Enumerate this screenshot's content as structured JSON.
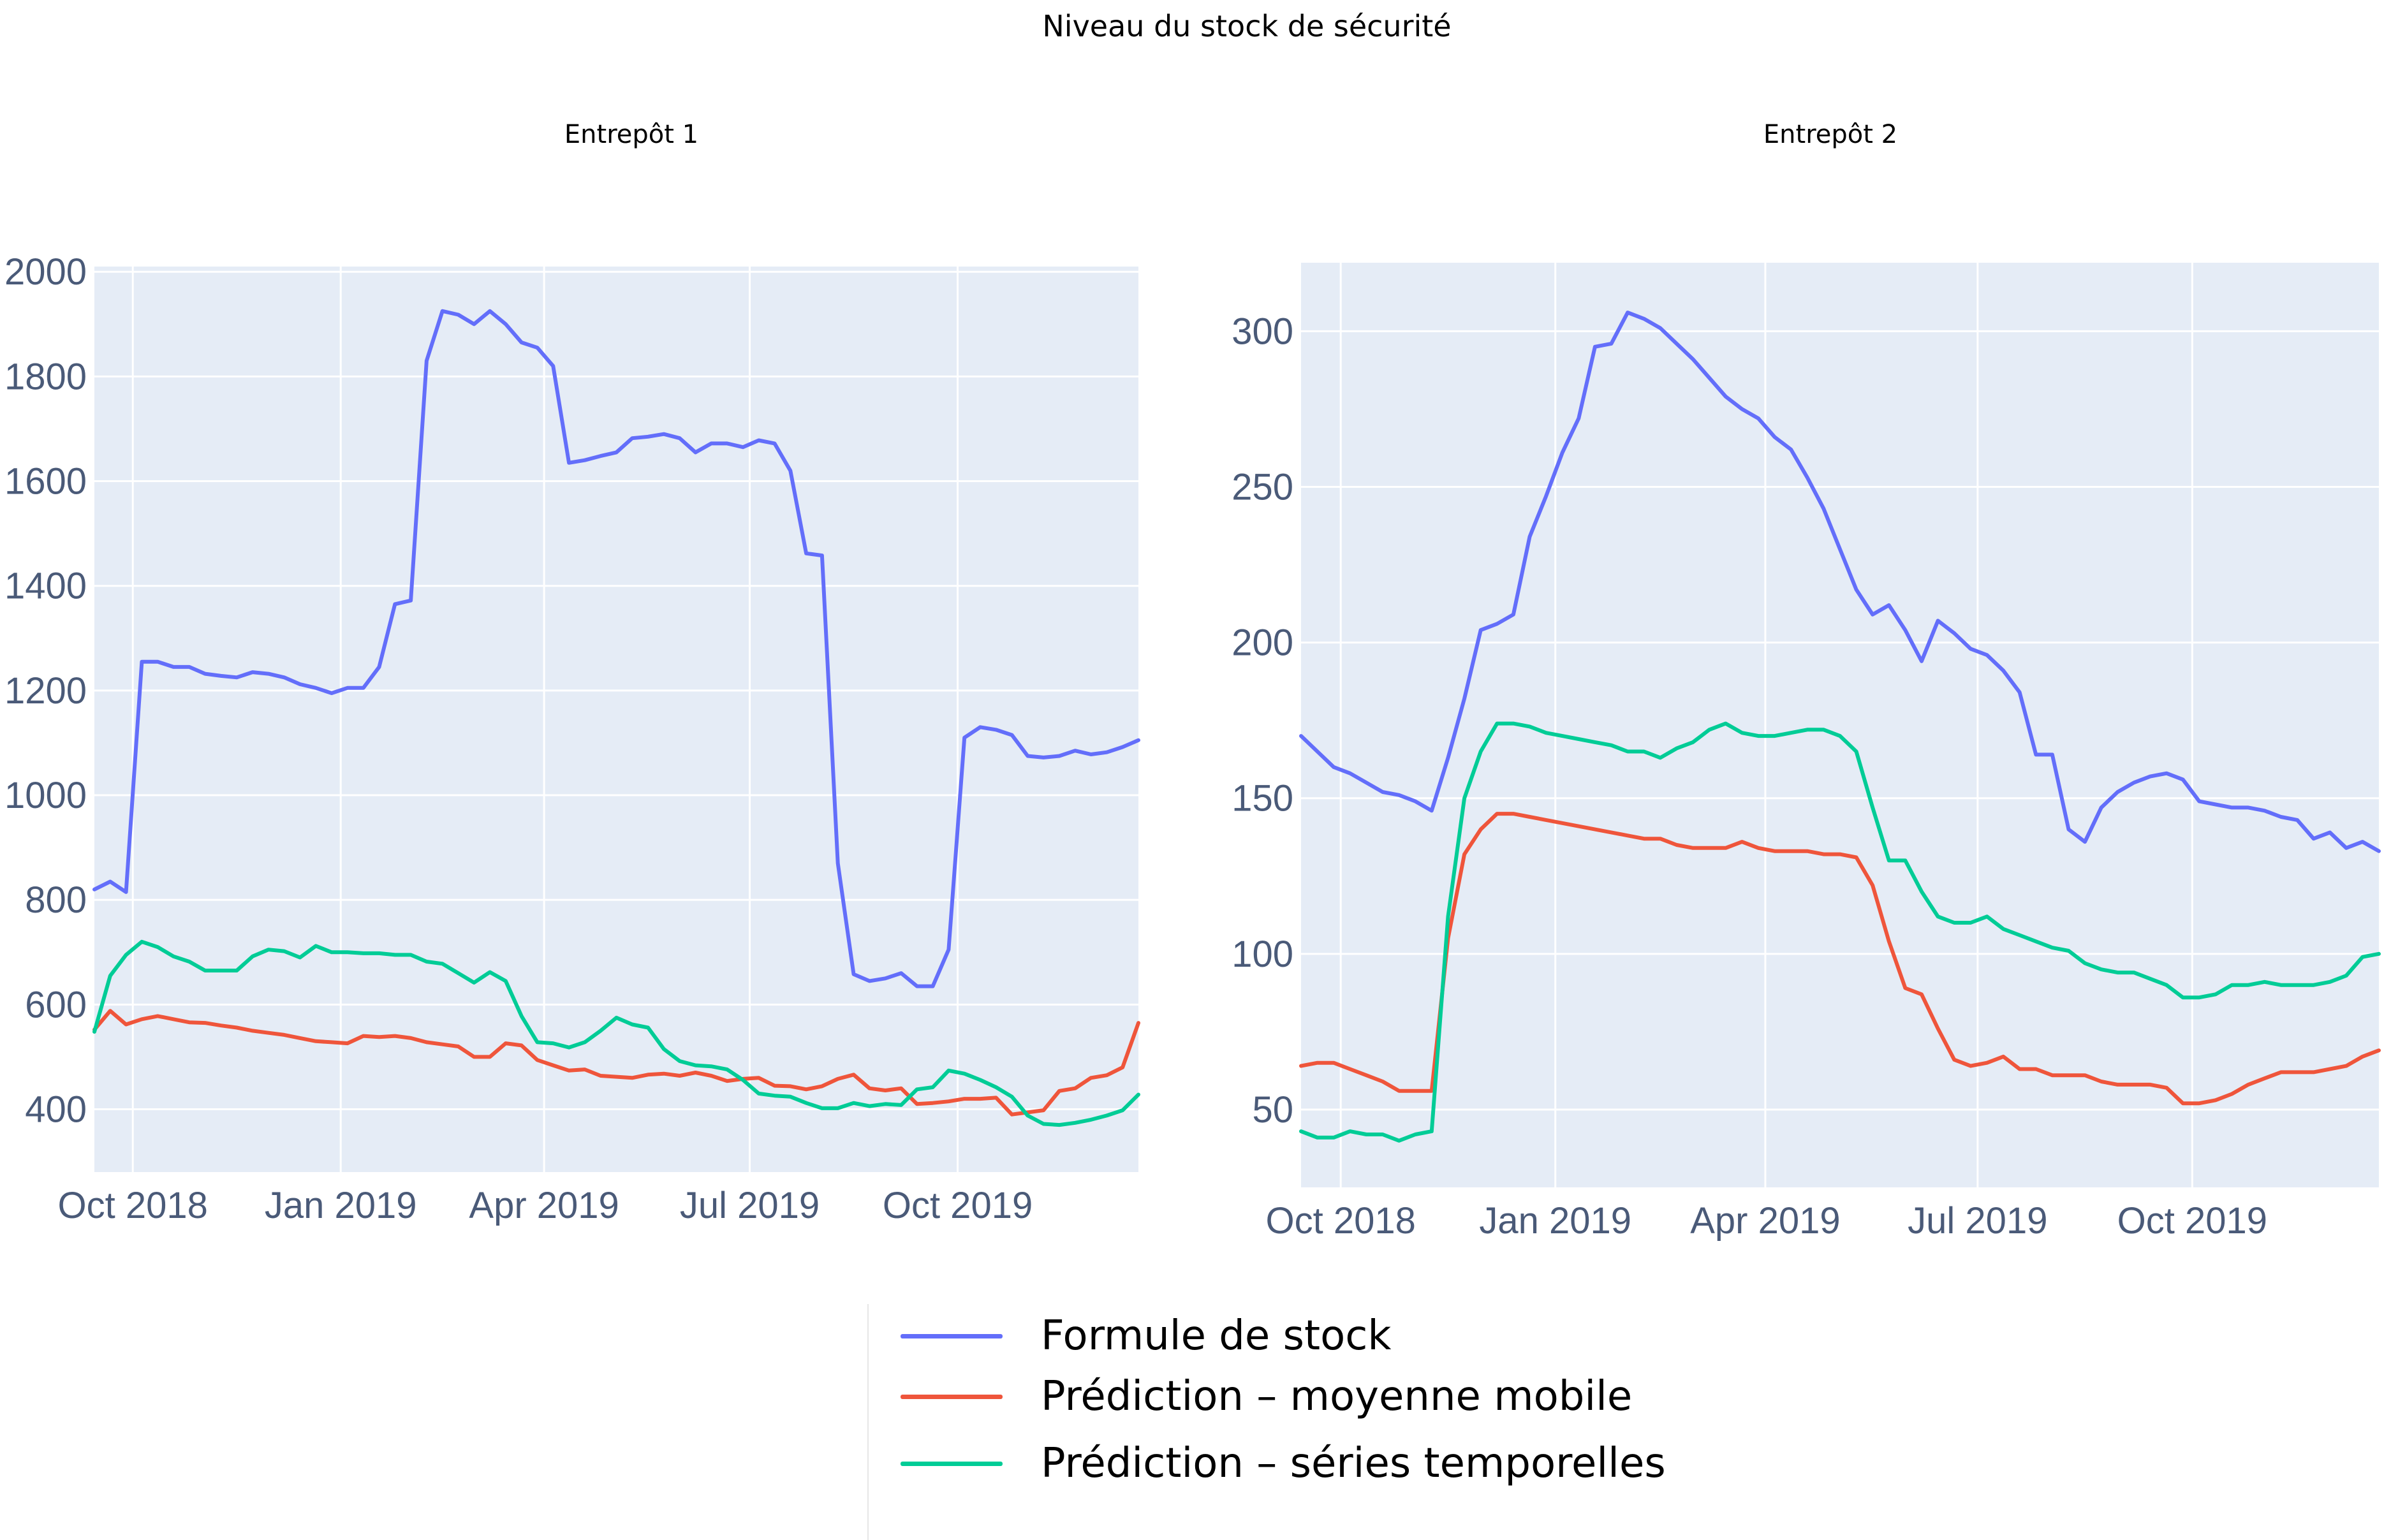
{
  "title": "Niveau du stock de sécurité",
  "colors": {
    "blue": "#636efa",
    "red": "#ef553b",
    "green": "#00cc96",
    "plot_bg": "#e5ecf6",
    "grid": "#ffffff"
  },
  "legend": [
    {
      "label": "Formule de stock",
      "color": "#636efa"
    },
    {
      "label": "Prédiction – moyenne mobile",
      "color": "#ef553b"
    },
    {
      "label": "Prédiction – séries temporelles",
      "color": "#00cc96"
    }
  ],
  "chart_data": [
    {
      "type": "line",
      "subtitle": "Entrepôt 1",
      "x_range": [
        "2018-09-14",
        "2019-12-20"
      ],
      "ylim": [
        280,
        2010
      ],
      "yticks": [
        400,
        600,
        800,
        1000,
        1200,
        1400,
        1600,
        1800,
        2000
      ],
      "xticks": [
        {
          "label": "Oct 2018",
          "date": "2018-10-01"
        },
        {
          "label": "Jan 2019",
          "date": "2019-01-01"
        },
        {
          "label": "Apr 2019",
          "date": "2019-04-01"
        },
        {
          "label": "Jul 2019",
          "date": "2019-07-01"
        },
        {
          "label": "Oct 2019",
          "date": "2019-10-01"
        }
      ],
      "x": [
        "2018-09-14",
        "2018-09-21",
        "2018-09-28",
        "2018-10-05",
        "2018-10-12",
        "2018-10-19",
        "2018-10-26",
        "2018-11-02",
        "2018-11-09",
        "2018-11-16",
        "2018-11-23",
        "2018-11-30",
        "2018-12-07",
        "2018-12-14",
        "2018-12-21",
        "2018-12-28",
        "2019-01-04",
        "2019-01-11",
        "2019-01-18",
        "2019-01-25",
        "2019-02-01",
        "2019-02-08",
        "2019-02-15",
        "2019-02-22",
        "2019-03-01",
        "2019-03-08",
        "2019-03-15",
        "2019-03-22",
        "2019-03-29",
        "2019-04-05",
        "2019-04-12",
        "2019-04-19",
        "2019-04-26",
        "2019-05-03",
        "2019-05-10",
        "2019-05-17",
        "2019-05-24",
        "2019-05-31",
        "2019-06-07",
        "2019-06-14",
        "2019-06-21",
        "2019-06-28",
        "2019-07-05",
        "2019-07-12",
        "2019-07-19",
        "2019-07-26",
        "2019-08-02",
        "2019-08-09",
        "2019-08-16",
        "2019-08-23",
        "2019-08-30",
        "2019-09-06",
        "2019-09-13",
        "2019-09-20",
        "2019-09-27",
        "2019-10-04",
        "2019-10-11",
        "2019-10-18",
        "2019-10-25",
        "2019-11-01",
        "2019-11-08",
        "2019-11-15",
        "2019-11-22",
        "2019-11-29",
        "2019-12-06",
        "2019-12-13",
        "2019-12-20"
      ],
      "series": [
        {
          "name": "Formule de stock",
          "color": "#636efa",
          "values": [
            820,
            835,
            815,
            1255,
            1255,
            1245,
            1245,
            1232,
            1228,
            1225,
            1235,
            1232,
            1225,
            1212,
            1205,
            1195,
            1205,
            1205,
            1245,
            1365,
            1372,
            1830,
            1925,
            1918,
            1900,
            1925,
            1900,
            1865,
            1855,
            1820,
            1635,
            1640,
            1648,
            1655,
            1682,
            1685,
            1690,
            1682,
            1655,
            1672,
            1672,
            1665,
            1678,
            1672,
            1620,
            1462,
            1458,
            870,
            658,
            645,
            650,
            660,
            635,
            635,
            705,
            1110,
            1130,
            1125,
            1115,
            1075,
            1072,
            1075,
            1085,
            1078,
            1082,
            1092,
            1105
          ]
        },
        {
          "name": "Prédiction – moyenne mobile",
          "color": "#ef553b",
          "values": [
            552,
            588,
            562,
            572,
            578,
            572,
            566,
            565,
            560,
            556,
            550,
            546,
            542,
            536,
            530,
            528,
            526,
            540,
            538,
            540,
            536,
            528,
            524,
            520,
            500,
            500,
            526,
            522,
            494,
            484,
            474,
            476,
            464,
            462,
            460,
            466,
            468,
            464,
            470,
            464,
            454,
            458,
            460,
            445,
            444,
            438,
            444,
            458,
            466,
            440,
            436,
            440,
            410,
            412,
            415,
            420,
            420,
            422,
            390,
            394,
            398,
            435,
            440,
            460,
            465,
            480,
            565
          ]
        },
        {
          "name": "Prédiction – séries temporelles",
          "color": "#00cc96",
          "values": [
            548,
            655,
            695,
            720,
            710,
            692,
            682,
            665,
            665,
            665,
            692,
            705,
            702,
            690,
            712,
            700,
            700,
            698,
            698,
            695,
            695,
            682,
            678,
            660,
            642,
            662,
            645,
            578,
            528,
            526,
            518,
            528,
            550,
            575,
            562,
            556,
            515,
            492,
            484,
            482,
            476,
            456,
            430,
            426,
            424,
            412,
            402,
            402,
            412,
            406,
            410,
            408,
            438,
            442,
            474,
            468,
            456,
            442,
            424,
            388,
            372,
            370,
            374,
            380,
            388,
            398,
            428
          ]
        }
      ]
    },
    {
      "type": "line",
      "subtitle": "Entrepôt 2",
      "x_range": [
        "2018-09-14",
        "2019-12-20"
      ],
      "ylim": [
        25,
        322
      ],
      "yticks": [
        50,
        100,
        150,
        200,
        250,
        300
      ],
      "xticks": [
        {
          "label": "Oct 2018",
          "date": "2018-10-01"
        },
        {
          "label": "Jan 2019",
          "date": "2019-01-01"
        },
        {
          "label": "Apr 2019",
          "date": "2019-04-01"
        },
        {
          "label": "Jul 2019",
          "date": "2019-07-01"
        },
        {
          "label": "Oct 2019",
          "date": "2019-10-01"
        }
      ],
      "x": [
        "2018-09-14",
        "2018-09-21",
        "2018-09-28",
        "2018-10-05",
        "2018-10-12",
        "2018-10-19",
        "2018-10-26",
        "2018-11-02",
        "2018-11-09",
        "2018-11-16",
        "2018-11-23",
        "2018-11-30",
        "2018-12-07",
        "2018-12-14",
        "2018-12-21",
        "2018-12-28",
        "2019-01-04",
        "2019-01-11",
        "2019-01-18",
        "2019-01-25",
        "2019-02-01",
        "2019-02-08",
        "2019-02-15",
        "2019-02-22",
        "2019-03-01",
        "2019-03-08",
        "2019-03-15",
        "2019-03-22",
        "2019-03-29",
        "2019-04-05",
        "2019-04-12",
        "2019-04-19",
        "2019-04-26",
        "2019-05-03",
        "2019-05-10",
        "2019-05-17",
        "2019-05-24",
        "2019-05-31",
        "2019-06-07",
        "2019-06-14",
        "2019-06-21",
        "2019-06-28",
        "2019-07-05",
        "2019-07-12",
        "2019-07-19",
        "2019-07-26",
        "2019-08-02",
        "2019-08-09",
        "2019-08-16",
        "2019-08-23",
        "2019-08-30",
        "2019-09-06",
        "2019-09-13",
        "2019-09-20",
        "2019-09-27",
        "2019-10-04",
        "2019-10-11",
        "2019-10-18",
        "2019-10-25",
        "2019-11-01",
        "2019-11-08",
        "2019-11-15",
        "2019-11-22",
        "2019-11-29",
        "2019-12-06",
        "2019-12-13",
        "2019-12-20"
      ],
      "series": [
        {
          "name": "Formule de stock",
          "color": "#636efa",
          "values": [
            170,
            165,
            160,
            158,
            155,
            152,
            151,
            149,
            146,
            163,
            182,
            204,
            206,
            209,
            234,
            247,
            261,
            272,
            295,
            296,
            306,
            304,
            301,
            296,
            291,
            285,
            279,
            275,
            272,
            266,
            262,
            253,
            243,
            230,
            217,
            209,
            212,
            204,
            194,
            207,
            203,
            198,
            196,
            191,
            184,
            164,
            164,
            140,
            136,
            147,
            152,
            155,
            157,
            158,
            156,
            149,
            148,
            147,
            147,
            146,
            144,
            143,
            137,
            139,
            134,
            136,
            133
          ]
        },
        {
          "name": "Prédiction – moyenne mobile",
          "color": "#ef553b",
          "values": [
            64,
            65,
            65,
            63,
            61,
            59,
            56,
            56,
            56,
            105,
            132,
            140,
            145,
            145,
            144,
            143,
            142,
            141,
            140,
            139,
            138,
            137,
            137,
            135,
            134,
            134,
            134,
            136,
            134,
            133,
            133,
            133,
            132,
            132,
            131,
            122,
            104,
            89,
            87,
            76,
            66,
            64,
            65,
            67,
            63,
            63,
            61,
            61,
            61,
            59,
            58,
            58,
            58,
            57,
            52,
            52,
            53,
            55,
            58,
            60,
            62,
            62,
            62,
            63,
            64,
            67,
            69
          ]
        },
        {
          "name": "Prédiction – séries temporelles",
          "color": "#00cc96",
          "values": [
            43,
            41,
            41,
            43,
            42,
            42,
            40,
            42,
            43,
            112,
            150,
            165,
            174,
            174,
            173,
            171,
            170,
            169,
            168,
            167,
            165,
            165,
            163,
            166,
            168,
            172,
            174,
            171,
            170,
            170,
            171,
            172,
            172,
            170,
            165,
            147,
            130,
            130,
            120,
            112,
            110,
            110,
            112,
            108,
            106,
            104,
            102,
            101,
            97,
            95,
            94,
            94,
            92,
            90,
            86,
            86,
            87,
            90,
            90,
            91,
            90,
            90,
            90,
            91,
            93,
            99,
            100
          ]
        }
      ]
    }
  ]
}
